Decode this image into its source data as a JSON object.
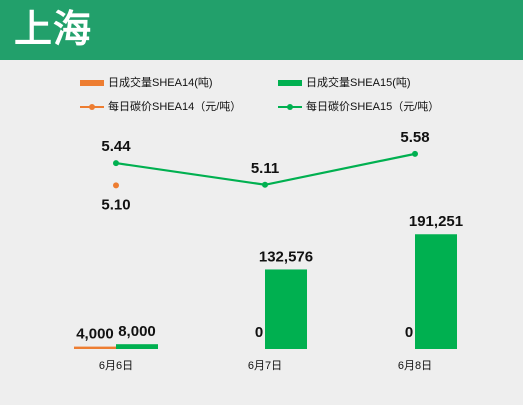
{
  "header": {
    "title": "上海"
  },
  "legend": {
    "items": [
      {
        "label": "日成交量SHEA14(吨)",
        "kind": "bar",
        "color": "#ed7d31"
      },
      {
        "label": "日成交量SHEA15(吨)",
        "kind": "bar",
        "color": "#00b050"
      },
      {
        "label": "每日碳价SHEA14（元/吨）",
        "kind": "line",
        "color": "#ed7d31"
      },
      {
        "label": "每日碳价SHEA15（元/吨）",
        "kind": "line",
        "color": "#00b050"
      }
    ]
  },
  "chart_data": {
    "type": "bar+line",
    "categories": [
      "6月6日",
      "6月7日",
      "6月8日"
    ],
    "bar_series": [
      {
        "name": "日成交量SHEA14(吨)",
        "values": [
          4000,
          0,
          0
        ],
        "labels": [
          "4,000",
          "0",
          "0"
        ],
        "color": "#ed7d31"
      },
      {
        "name": "日成交量SHEA15(吨)",
        "values": [
          8000,
          132576,
          191251
        ],
        "labels": [
          "8,000",
          "132,576",
          "191,251"
        ],
        "color": "#00b050"
      }
    ],
    "line_series": [
      {
        "name": "每日碳价SHEA14（元/吨）",
        "values": [
          5.1,
          null,
          null
        ],
        "labels": [
          "5.10",
          null,
          null
        ],
        "color": "#ed7d31"
      },
      {
        "name": "每日碳价SHEA15（元/吨）",
        "values": [
          5.44,
          5.11,
          5.58
        ],
        "labels": [
          "5.44",
          "5.11",
          "5.58"
        ],
        "color": "#00b050"
      }
    ],
    "bar_max": 200000,
    "line_range": [
      5.0,
      5.7
    ],
    "legend_position": "top",
    "grid": false
  }
}
